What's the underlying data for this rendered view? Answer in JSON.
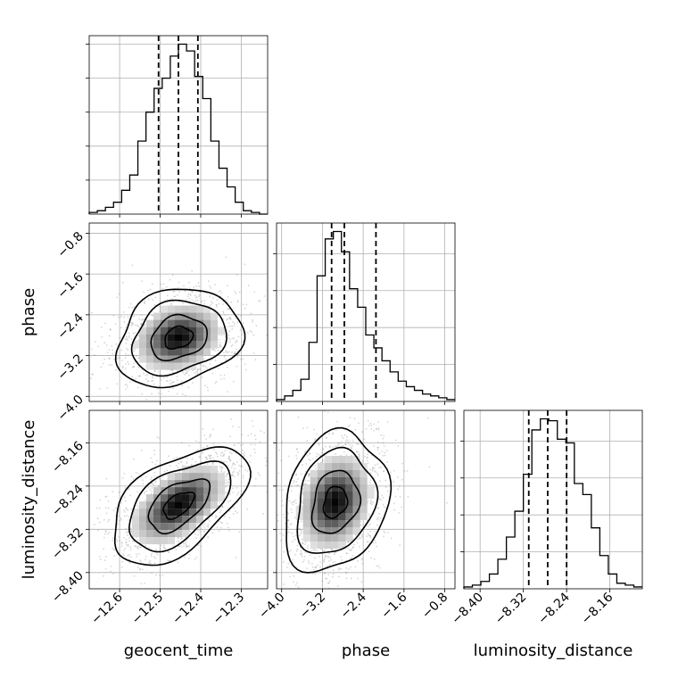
{
  "chart_data": {
    "type": "corner",
    "parameters": [
      "geocent_time",
      "phase",
      "luminosity_distance"
    ],
    "grid": true,
    "quantiles": {
      "geocent_time": [
        -12.504,
        -12.455,
        -12.407
      ],
      "phase": [
        -3.02,
        -2.77,
        -2.15
      ],
      "luminosity_distance": [
        -8.31,
        -8.275,
        -8.24
      ]
    },
    "histograms": {
      "geocent_time": {
        "range": [
          -12.675,
          -12.235
        ],
        "counts": [
          1,
          2,
          4,
          7,
          14,
          23,
          43,
          60,
          74,
          80,
          93,
          100,
          96,
          81,
          68,
          43,
          27,
          16,
          7,
          2,
          1,
          0
        ]
      },
      "phase": {
        "range": [
          -4.1,
          -0.6
        ],
        "counts": [
          1,
          3,
          6,
          12,
          32,
          68,
          88,
          92,
          81,
          61,
          51,
          36,
          29,
          22,
          16,
          11,
          8,
          6,
          4,
          3,
          2,
          1
        ]
      },
      "luminosity_distance": {
        "range": [
          -8.43,
          -8.1
        ],
        "counts": [
          1,
          2,
          4,
          8,
          16,
          28,
          42,
          62,
          86,
          92,
          91,
          81,
          79,
          57,
          51,
          33,
          18,
          8,
          3,
          2,
          1
        ]
      }
    },
    "panels": [
      {
        "row": "phase",
        "col": "geocent_time",
        "xlim": [
          -12.675,
          -12.235
        ],
        "ylim": [
          -4.1,
          -0.6
        ],
        "x_ticks": [
          -12.6,
          -12.5,
          -12.4,
          -12.3
        ],
        "y_ticks": [
          -4.0,
          -3.2,
          -2.4,
          -1.6,
          -0.8
        ],
        "center": [
          -12.455,
          -2.85
        ]
      },
      {
        "row": "luminosity_distance",
        "col": "geocent_time",
        "xlim": [
          -12.675,
          -12.235
        ],
        "ylim": [
          -8.43,
          -8.1
        ],
        "x_ticks": [
          -12.6,
          -12.5,
          -12.4,
          -12.3
        ],
        "y_ticks": [
          -8.4,
          -8.32,
          -8.24,
          -8.16
        ],
        "center": [
          -12.455,
          -8.275
        ]
      },
      {
        "row": "luminosity_distance",
        "col": "phase",
        "xlim": [
          -4.1,
          -0.6
        ],
        "ylim": [
          -8.43,
          -8.1
        ],
        "x_ticks": [
          -4.0,
          -3.2,
          -2.4,
          -1.6,
          -0.8
        ],
        "y_ticks": [
          -8.4,
          -8.32,
          -8.24,
          -8.16
        ],
        "center": [
          -2.95,
          -8.27
        ]
      }
    ],
    "tick_labels": {
      "geocent_time": [
        "−12.6",
        "−12.5",
        "−12.4",
        "−12.3"
      ],
      "phase": [
        "−4.0",
        "−3.2",
        "−2.4",
        "−1.6",
        "−0.8"
      ],
      "luminosity_distance": [
        "−8.40",
        "−8.32",
        "−8.24",
        "−8.16"
      ]
    },
    "xlabels": [
      "geocent_time",
      "phase",
      "luminosity_distance"
    ],
    "ylabels": [
      "phase",
      "luminosity_distance"
    ]
  }
}
